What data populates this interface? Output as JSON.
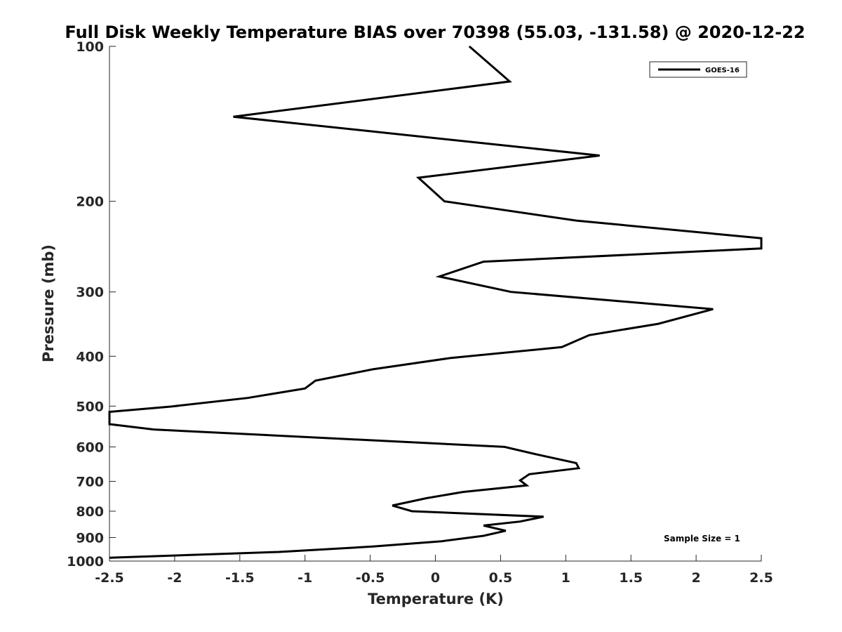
{
  "chart_data": {
    "type": "line",
    "title": "Full Disk Weekly Temperature BIAS over 70398 (55.03, -131.58) @ 2020-12-22",
    "xlabel": "Temperature (K)",
    "ylabel": "Pressure (mb)",
    "xlim": [
      -2.5,
      2.5
    ],
    "ylim": [
      100,
      1000
    ],
    "y_scale": "log",
    "y_reversed": true,
    "grid": false,
    "xticks": [
      -2.5,
      -2,
      -1.5,
      -1,
      -0.5,
      0,
      0.5,
      1,
      1.5,
      2,
      2.5
    ],
    "xtick_labels": [
      "-2.5",
      "-2",
      "-1.5",
      "-1",
      "-0.5",
      "0",
      "0.5",
      "1",
      "1.5",
      "2",
      "2.5"
    ],
    "yticks": [
      100,
      200,
      300,
      400,
      500,
      600,
      700,
      800,
      900,
      1000
    ],
    "ytick_labels": [
      "100",
      "200",
      "300",
      "400",
      "500",
      "600",
      "700",
      "800",
      "900",
      "1000"
    ],
    "legend_position": "top-right",
    "annotation": "Sample Size = 1",
    "series": [
      {
        "name": "GOES-16",
        "color": "#000000",
        "points": [
          {
            "t": 0.26,
            "p": 100
          },
          {
            "t": 0.57,
            "p": 117
          },
          {
            "t": -1.55,
            "p": 137
          },
          {
            "t": 1.26,
            "p": 163
          },
          {
            "t": -0.13,
            "p": 180
          },
          {
            "t": 0.07,
            "p": 200
          },
          {
            "t": 1.08,
            "p": 218
          },
          {
            "t": 2.5,
            "p": 236
          },
          {
            "t": 2.5,
            "p": 247
          },
          {
            "t": 0.37,
            "p": 262
          },
          {
            "t": 0.03,
            "p": 280
          },
          {
            "t": 0.58,
            "p": 300
          },
          {
            "t": 2.13,
            "p": 324
          },
          {
            "t": 1.71,
            "p": 346
          },
          {
            "t": 1.18,
            "p": 364
          },
          {
            "t": 0.97,
            "p": 384
          },
          {
            "t": 0.12,
            "p": 403
          },
          {
            "t": -0.48,
            "p": 424
          },
          {
            "t": -0.92,
            "p": 446
          },
          {
            "t": -1.0,
            "p": 462
          },
          {
            "t": -1.44,
            "p": 482
          },
          {
            "t": -2.03,
            "p": 501
          },
          {
            "t": -2.5,
            "p": 513
          },
          {
            "t": -2.5,
            "p": 542
          },
          {
            "t": -2.16,
            "p": 555
          },
          {
            "t": 0.53,
            "p": 600
          },
          {
            "t": 0.77,
            "p": 620
          },
          {
            "t": 1.08,
            "p": 645
          },
          {
            "t": 1.1,
            "p": 660
          },
          {
            "t": 0.72,
            "p": 678
          },
          {
            "t": 0.65,
            "p": 697
          },
          {
            "t": 0.7,
            "p": 713
          },
          {
            "t": 0.21,
            "p": 734
          },
          {
            "t": -0.07,
            "p": 755
          },
          {
            "t": -0.33,
            "p": 780
          },
          {
            "t": -0.18,
            "p": 800
          },
          {
            "t": 0.83,
            "p": 820
          },
          {
            "t": 0.65,
            "p": 838
          },
          {
            "t": 0.37,
            "p": 853
          },
          {
            "t": 0.54,
            "p": 873
          },
          {
            "t": 0.37,
            "p": 893
          },
          {
            "t": 0.05,
            "p": 915
          },
          {
            "t": -0.48,
            "p": 937
          },
          {
            "t": -1.2,
            "p": 960
          },
          {
            "t": -2.5,
            "p": 985
          }
        ]
      }
    ]
  }
}
